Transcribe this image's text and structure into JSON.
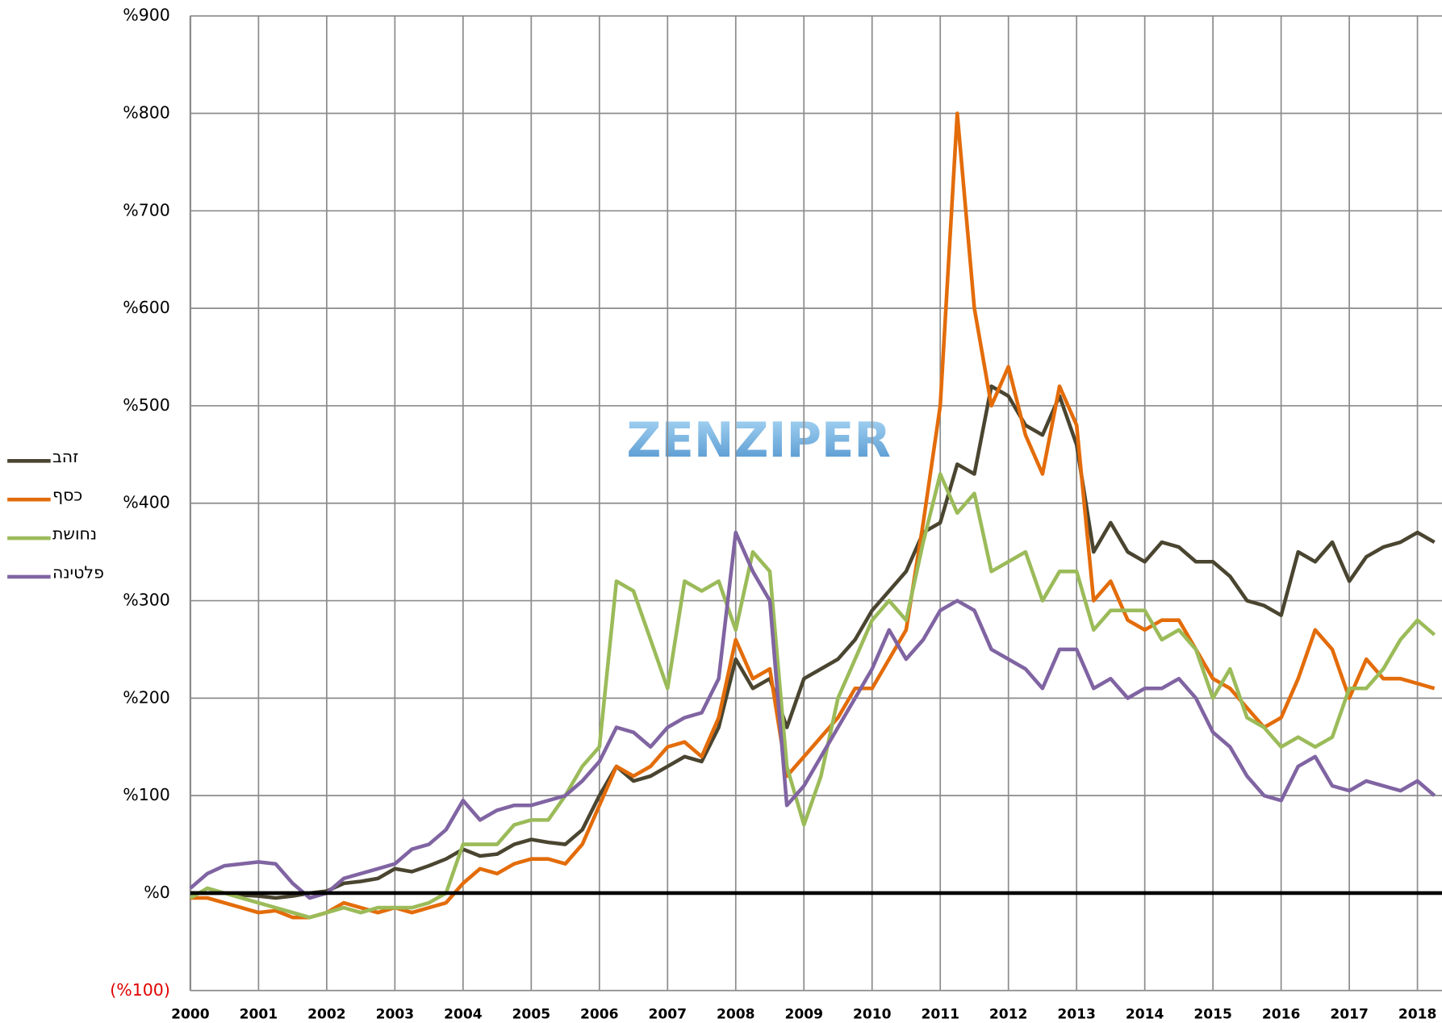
{
  "chart_data": {
    "type": "line",
    "watermark": "ZENZIPER",
    "x": [
      2000,
      2000.25,
      2000.5,
      2000.75,
      2001,
      2001.25,
      2001.5,
      2001.75,
      2002,
      2002.25,
      2002.5,
      2002.75,
      2003,
      2003.25,
      2003.5,
      2003.75,
      2004,
      2004.25,
      2004.5,
      2004.75,
      2005,
      2005.25,
      2005.5,
      2005.75,
      2006,
      2006.25,
      2006.5,
      2006.75,
      2007,
      2007.25,
      2007.5,
      2007.75,
      2008,
      2008.25,
      2008.5,
      2008.75,
      2009,
      2009.25,
      2009.5,
      2009.75,
      2010,
      2010.25,
      2010.5,
      2010.75,
      2011,
      2011.25,
      2011.5,
      2011.75,
      2012,
      2012.25,
      2012.5,
      2012.75,
      2013,
      2013.25,
      2013.5,
      2013.75,
      2014,
      2014.25,
      2014.5,
      2014.75,
      2015,
      2015.25,
      2015.5,
      2015.75,
      2016,
      2016.25,
      2016.5,
      2016.75,
      2017,
      2017.25,
      2017.5,
      2017.75,
      2018,
      2018.25
    ],
    "series": [
      {
        "name": "זהב",
        "color": "#4a4530",
        "values": [
          0,
          0,
          0,
          -2,
          -3,
          -5,
          -3,
          0,
          2,
          10,
          12,
          15,
          25,
          22,
          28,
          35,
          45,
          38,
          40,
          50,
          55,
          52,
          50,
          65,
          100,
          130,
          115,
          120,
          130,
          140,
          135,
          170,
          240,
          210,
          220,
          170,
          220,
          230,
          240,
          260,
          290,
          310,
          330,
          370,
          380,
          440,
          430,
          520,
          510,
          480,
          470,
          510,
          460,
          350,
          380,
          350,
          340,
          360,
          355,
          340,
          340,
          325,
          300,
          295,
          285,
          350,
          340,
          360,
          320,
          345,
          355,
          360,
          370,
          360
        ]
      },
      {
        "name": "כסף",
        "color": "#e36c0a",
        "values": [
          -5,
          -5,
          -10,
          -15,
          -20,
          -18,
          -25,
          -25,
          -20,
          -10,
          -15,
          -20,
          -15,
          -20,
          -15,
          -10,
          10,
          25,
          20,
          30,
          35,
          35,
          30,
          50,
          90,
          130,
          120,
          130,
          150,
          155,
          140,
          180,
          260,
          220,
          230,
          120,
          140,
          160,
          180,
          210,
          210,
          240,
          270,
          380,
          500,
          800,
          600,
          500,
          540,
          470,
          430,
          520,
          480,
          300,
          320,
          280,
          270,
          280,
          280,
          250,
          220,
          210,
          190,
          170,
          180,
          220,
          270,
          250,
          200,
          240,
          220,
          220,
          215,
          210
        ]
      },
      {
        "name": "נחושת",
        "color": "#9bbb59",
        "values": [
          -5,
          5,
          0,
          -5,
          -10,
          -15,
          -20,
          -25,
          -20,
          -15,
          -20,
          -15,
          -15,
          -15,
          -10,
          0,
          50,
          50,
          50,
          70,
          75,
          75,
          100,
          130,
          150,
          320,
          310,
          260,
          210,
          320,
          310,
          320,
          270,
          350,
          330,
          130,
          70,
          120,
          200,
          240,
          280,
          300,
          280,
          360,
          430,
          390,
          410,
          330,
          340,
          350,
          300,
          330,
          330,
          270,
          290,
          290,
          290,
          260,
          270,
          250,
          200,
          230,
          180,
          170,
          150,
          160,
          150,
          160,
          210,
          210,
          230,
          260,
          280,
          265
        ]
      },
      {
        "name": "פלטינה",
        "color": "#8064a2",
        "values": [
          5,
          20,
          28,
          30,
          32,
          30,
          10,
          -5,
          0,
          15,
          20,
          25,
          30,
          45,
          50,
          65,
          95,
          75,
          85,
          90,
          90,
          95,
          100,
          115,
          135,
          170,
          165,
          150,
          170,
          180,
          185,
          220,
          370,
          330,
          300,
          90,
          110,
          140,
          170,
          200,
          230,
          270,
          240,
          260,
          290,
          300,
          290,
          250,
          240,
          230,
          210,
          250,
          250,
          210,
          220,
          200,
          210,
          210,
          220,
          200,
          165,
          150,
          120,
          100,
          95,
          130,
          140,
          110,
          105,
          115,
          110,
          105,
          115,
          100
        ]
      }
    ],
    "xlim": [
      2000,
      2018.36
    ],
    "xticks": [
      2000,
      2001,
      2002,
      2003,
      2004,
      2005,
      2006,
      2007,
      2008,
      2009,
      2010,
      2011,
      2012,
      2013,
      2014,
      2015,
      2016,
      2017,
      2018
    ],
    "ylim": [
      -100,
      900
    ],
    "yticks": [
      {
        "value": -100,
        "label": "(%100)"
      },
      {
        "value": 0,
        "label": "%0"
      },
      {
        "value": 100,
        "label": "%100"
      },
      {
        "value": 200,
        "label": "%200"
      },
      {
        "value": 300,
        "label": "%300"
      },
      {
        "value": 400,
        "label": "%400"
      },
      {
        "value": 500,
        "label": "%500"
      },
      {
        "value": 600,
        "label": "%600"
      },
      {
        "value": 700,
        "label": "%700"
      },
      {
        "value": 800,
        "label": "%800"
      },
      {
        "value": 900,
        "label": "%900"
      }
    ],
    "grid": true,
    "legend": "left"
  }
}
